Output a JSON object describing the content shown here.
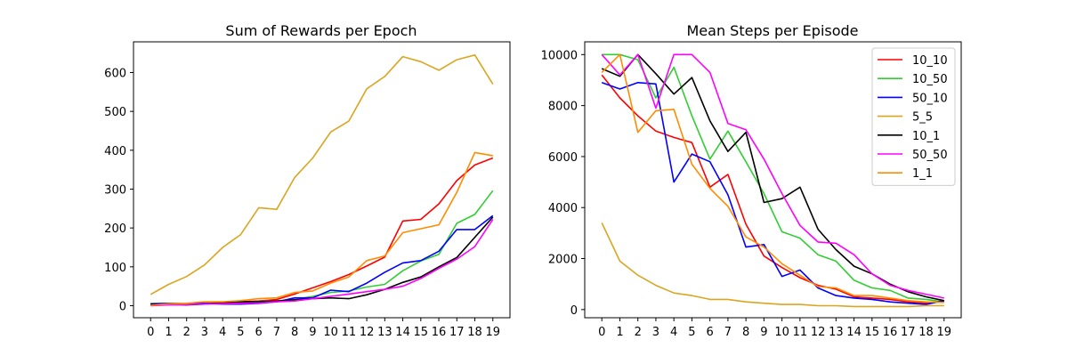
{
  "chart_data": [
    {
      "type": "line",
      "title": "Sum of Rewards per Epoch",
      "xlabel": "",
      "ylabel": "",
      "x": [
        0,
        1,
        2,
        3,
        4,
        5,
        6,
        7,
        8,
        9,
        10,
        11,
        12,
        13,
        14,
        15,
        16,
        17,
        18,
        19
      ],
      "xlim": [
        -0.95,
        19.95
      ],
      "ylim": [
        -31,
        679
      ],
      "yticks": [
        0,
        100,
        200,
        300,
        400,
        500,
        600
      ],
      "grid": false,
      "series": [
        {
          "name": "10_10",
          "color": "#ff0000",
          "values": [
            3,
            4,
            5,
            6,
            7,
            10,
            12,
            16,
            30,
            46,
            62,
            80,
            102,
            125,
            218,
            222,
            262,
            322,
            362,
            380
          ]
        },
        {
          "name": "10_50",
          "color": "#32cd32",
          "values": [
            5,
            6,
            5,
            6,
            8,
            9,
            11,
            12,
            16,
            24,
            34,
            38,
            48,
            55,
            90,
            115,
            132,
            212,
            235,
            296
          ]
        },
        {
          "name": "50_10",
          "color": "#0000ff",
          "values": [
            5,
            6,
            5,
            6,
            4,
            4,
            6,
            10,
            20,
            20,
            40,
            36,
            58,
            86,
            110,
            116,
            140,
            196,
            196,
            232
          ]
        },
        {
          "name": "5_5",
          "color": "#daa520",
          "values": [
            29,
            55,
            75,
            105,
            150,
            183,
            252,
            248,
            330,
            380,
            447,
            475,
            558,
            590,
            641,
            628,
            606,
            633,
            645,
            570
          ]
        },
        {
          "name": "10_1",
          "color": "#000000",
          "values": [
            4,
            3,
            2,
            4,
            8,
            10,
            10,
            12,
            15,
            18,
            20,
            18,
            28,
            42,
            60,
            74,
            100,
            124,
            176,
            228
          ]
        },
        {
          "name": "50_50",
          "color": "#ff00ff",
          "values": [
            0,
            2,
            3,
            4,
            5,
            6,
            7,
            10,
            12,
            18,
            24,
            30,
            36,
            42,
            50,
            70,
            96,
            120,
            152,
            222
          ]
        },
        {
          "name": "1_1",
          "color": "#ff8c00",
          "values": [
            1,
            5,
            6,
            10,
            10,
            13,
            18,
            20,
            34,
            38,
            58,
            74,
            116,
            128,
            188,
            198,
            208,
            292,
            394,
            386
          ]
        }
      ]
    },
    {
      "type": "line",
      "title": "Mean Steps per Episode",
      "xlabel": "",
      "ylabel": "",
      "x": [
        0,
        1,
        2,
        3,
        4,
        5,
        6,
        7,
        8,
        9,
        10,
        11,
        12,
        13,
        14,
        15,
        16,
        17,
        18,
        19
      ],
      "xlim": [
        -0.95,
        19.95
      ],
      "ylim": [
        -320,
        10500
      ],
      "yticks": [
        0,
        2000,
        4000,
        6000,
        8000,
        10000
      ],
      "grid": false,
      "legend": {
        "position": "upper right"
      },
      "series": [
        {
          "name": "10_10",
          "color": "#ff0000",
          "values": [
            9200,
            8300,
            7600,
            7000,
            6750,
            6550,
            4800,
            5300,
            3350,
            2100,
            1650,
            1250,
            950,
            800,
            500,
            450,
            400,
            300,
            250,
            320
          ]
        },
        {
          "name": "10_50",
          "color": "#32cd32",
          "values": [
            10000,
            10000,
            9800,
            8300,
            9500,
            7600,
            5900,
            7000,
            5800,
            4550,
            3050,
            2800,
            2150,
            1900,
            1150,
            850,
            750,
            450,
            400,
            300
          ]
        },
        {
          "name": "50_10",
          "color": "#0000ff",
          "values": [
            8900,
            8650,
            8900,
            8850,
            5000,
            6100,
            5800,
            4500,
            2450,
            2550,
            1300,
            1550,
            850,
            550,
            450,
            400,
            300,
            250,
            200,
            350
          ]
        },
        {
          "name": "5_5",
          "color": "#daa520",
          "values": [
            3400,
            1900,
            1350,
            950,
            650,
            550,
            400,
            400,
            300,
            250,
            200,
            200,
            150,
            150,
            120,
            120,
            120,
            120,
            150,
            150
          ]
        },
        {
          "name": "10_1",
          "color": "#000000",
          "values": [
            9450,
            9150,
            10000,
            9250,
            8450,
            9100,
            7400,
            6200,
            6950,
            4200,
            4350,
            4800,
            3150,
            2350,
            1700,
            1400,
            1000,
            700,
            500,
            350
          ]
        },
        {
          "name": "50_50",
          "color": "#ff00ff",
          "values": [
            10000,
            9200,
            10000,
            7900,
            10000,
            10000,
            9300,
            7300,
            7050,
            5900,
            4550,
            3300,
            2650,
            2600,
            2150,
            1400,
            950,
            750,
            600,
            450
          ]
        },
        {
          "name": "1_1",
          "color": "#ff8c00",
          "values": [
            9300,
            10000,
            6950,
            7800,
            7850,
            5700,
            4750,
            4050,
            2850,
            2450,
            1800,
            1350,
            900,
            850,
            550,
            550,
            450,
            350,
            300,
            280
          ]
        }
      ]
    }
  ]
}
